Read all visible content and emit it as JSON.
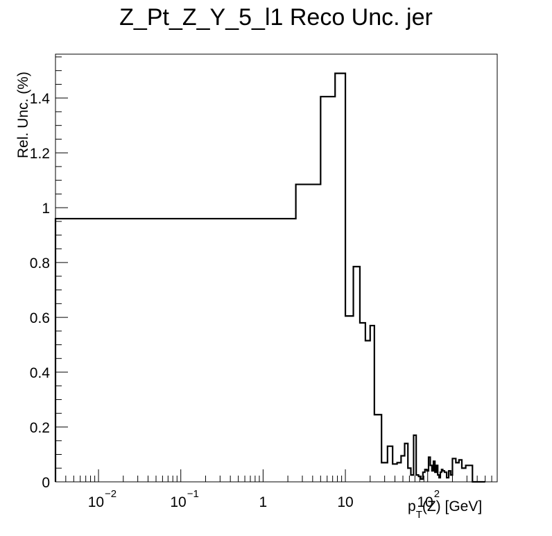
{
  "chart_data": {
    "type": "line",
    "title": "Z_Pt_Z_Y_5_l1 Reco Unc. jer",
    "xlabel_main": "p",
    "xlabel_sub": "T",
    "xlabel_rest": "(Z) [GeV]",
    "ylabel": "Rel. Unc. (%)",
    "x_scale": "log",
    "xlim": [
      0.003,
      700
    ],
    "ylim": [
      0,
      1.56
    ],
    "grid": false,
    "y_ticks": [
      {
        "value": 0,
        "label": "0"
      },
      {
        "value": 0.2,
        "label": "0.2"
      },
      {
        "value": 0.4,
        "label": "0.4"
      },
      {
        "value": 0.6,
        "label": "0.6"
      },
      {
        "value": 0.8,
        "label": "0.8"
      },
      {
        "value": 1.0,
        "label": "1"
      },
      {
        "value": 1.2,
        "label": "1.2"
      },
      {
        "value": 1.4,
        "label": "1.4"
      }
    ],
    "x_ticks": [
      {
        "value": 0.01,
        "base": "10",
        "exp": "−2"
      },
      {
        "value": 0.1,
        "base": "10",
        "exp": "−1"
      },
      {
        "value": 1,
        "base": "1",
        "exp": ""
      },
      {
        "value": 10,
        "base": "10",
        "exp": ""
      },
      {
        "value": 100,
        "base": "10",
        "exp": "2"
      }
    ],
    "series": [
      {
        "draw": "step",
        "edges": [
          0.003,
          2.5,
          5,
          7.5,
          10,
          12.5,
          15,
          17.5,
          20,
          22.5,
          27.5,
          32.5,
          37.5,
          42.5,
          47.5,
          52.5,
          57.5,
          62.5,
          67.5,
          72.5,
          77.5,
          82.5,
          87.5,
          92.5,
          97.5,
          102.5,
          107.5,
          112.5,
          117.5,
          122.5,
          127.5,
          132.5,
          137.5,
          142.5,
          147.5,
          152.5,
          160,
          170,
          180,
          190,
          200,
          220,
          240,
          260,
          290,
          320,
          350,
          500
        ],
        "values": [
          0.96,
          1.085,
          1.405,
          1.49,
          0.605,
          0.785,
          0.58,
          0.515,
          0.57,
          0.245,
          0.07,
          0.13,
          0.065,
          0.07,
          0.095,
          0.14,
          0.05,
          0.025,
          0.17,
          0.025,
          0.02,
          0.01,
          0.035,
          0.045,
          0.04,
          0.09,
          0.06,
          0.04,
          0.075,
          0.035,
          0.06,
          0.025,
          0.015,
          0.035,
          0.045,
          0.04,
          0.035,
          0.015,
          0.04,
          0.025,
          0.085,
          0.07,
          0.08,
          0.05,
          0.06,
          0.06,
          0.0
        ]
      }
    ]
  }
}
